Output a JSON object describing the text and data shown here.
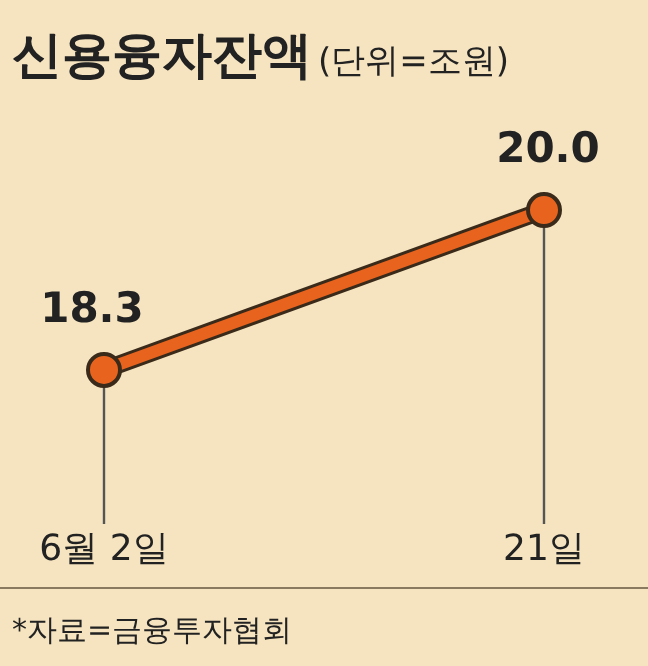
{
  "chart_data": {
    "type": "line",
    "title": "신용융자잔액",
    "subtitle": "(단위=조원)",
    "categories": [
      "6월 2일",
      "21일"
    ],
    "series": [
      {
        "color": "#e8641e",
        "values": [
          18.3,
          20.0
        ],
        "value_labels": [
          "18.3",
          "20.0"
        ]
      }
    ],
    "marker": "circle",
    "grid": "x",
    "annotations": [
      "*자료=금융투자협회"
    ]
  }
}
